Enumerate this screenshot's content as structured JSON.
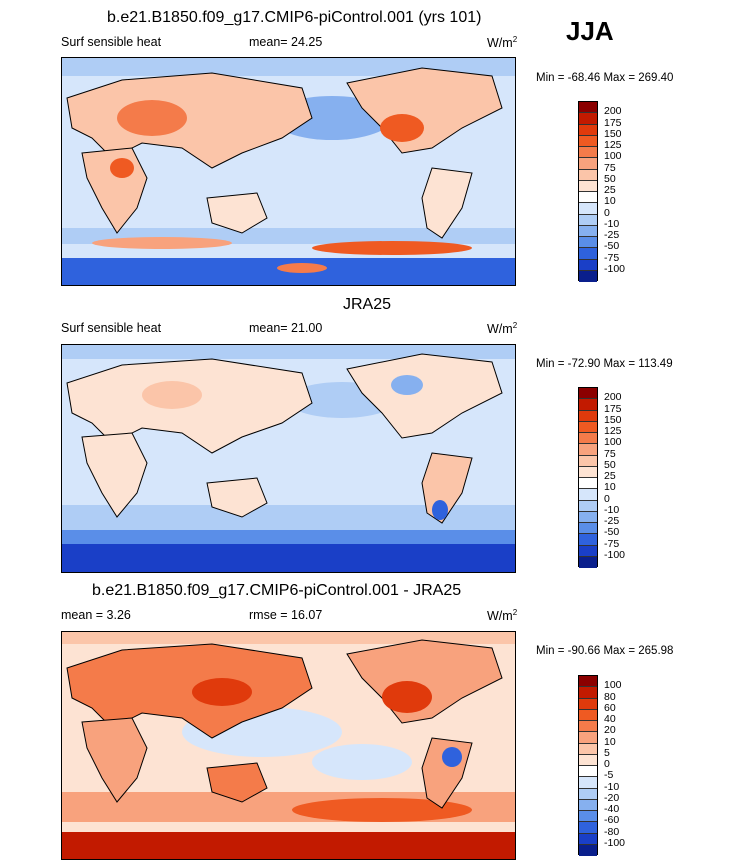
{
  "season": "JJA",
  "panels": [
    {
      "title": "b.e21.B1850.f09_g17.CMIP6-piControl.001 (yrs 101)",
      "left_label": "Surf sensible heat",
      "center_label": "mean=  24.25",
      "units": "W/m",
      "units_sup": "2",
      "minmax": "Min = -68.46 Max = 269.40",
      "colorbar_labels": [
        "200",
        "175",
        "150",
        "125",
        "100",
        "75",
        "50",
        "25",
        "10",
        "0",
        "-10",
        "-25",
        "-50",
        "-75",
        "-100"
      ],
      "colorbar_colors": [
        "#8b0000",
        "#c21a00",
        "#e03a0c",
        "#ef5a22",
        "#f47b4a",
        "#f8a27d",
        "#fbc5a9",
        "#fde3d3",
        "#ffffff",
        "#d6e6fb",
        "#afcdf5",
        "#86b0ef",
        "#5a8ee8",
        "#2f62dd",
        "#1a3fc7",
        "#0a1f8c"
      ]
    },
    {
      "title": "JRA25",
      "left_label": "Surf sensible heat",
      "center_label": "mean=  21.00",
      "units": "W/m",
      "units_sup": "2",
      "minmax": "Min = -72.90 Max = 113.49",
      "colorbar_labels": [
        "200",
        "175",
        "150",
        "125",
        "100",
        "75",
        "50",
        "25",
        "10",
        "0",
        "-10",
        "-25",
        "-50",
        "-75",
        "-100"
      ],
      "colorbar_colors": [
        "#8b0000",
        "#c21a00",
        "#e03a0c",
        "#ef5a22",
        "#f47b4a",
        "#f8a27d",
        "#fbc5a9",
        "#fde3d3",
        "#ffffff",
        "#d6e6fb",
        "#afcdf5",
        "#86b0ef",
        "#5a8ee8",
        "#2f62dd",
        "#1a3fc7",
        "#0a1f8c"
      ]
    },
    {
      "title": "b.e21.B1850.f09_g17.CMIP6-piControl.001 - JRA25",
      "left_label": "mean =   3.26",
      "center_label": "rmse =  16.07",
      "units": "W/m",
      "units_sup": "2",
      "minmax": "Min = -90.66 Max = 265.98",
      "colorbar_labels": [
        "100",
        "80",
        "60",
        "40",
        "20",
        "10",
        "5",
        "0",
        "-5",
        "-10",
        "-20",
        "-40",
        "-60",
        "-80",
        "-100"
      ],
      "colorbar_colors": [
        "#8b0000",
        "#c21a00",
        "#e03a0c",
        "#ef5a22",
        "#f47b4a",
        "#f8a27d",
        "#fbc5a9",
        "#fde3d3",
        "#ffffff",
        "#d6e6fb",
        "#afcdf5",
        "#86b0ef",
        "#5a8ee8",
        "#2f62dd",
        "#1a3fc7",
        "#0a1f8c"
      ]
    }
  ],
  "colors": {
    "ocean_light": "#d6e6fb",
    "ocean_mid": "#afcdf5",
    "ocean_dark": "#2f62dd",
    "land_warm": "#fbc5a9",
    "land_hot": "#ef5a22",
    "coast": "#000000"
  }
}
